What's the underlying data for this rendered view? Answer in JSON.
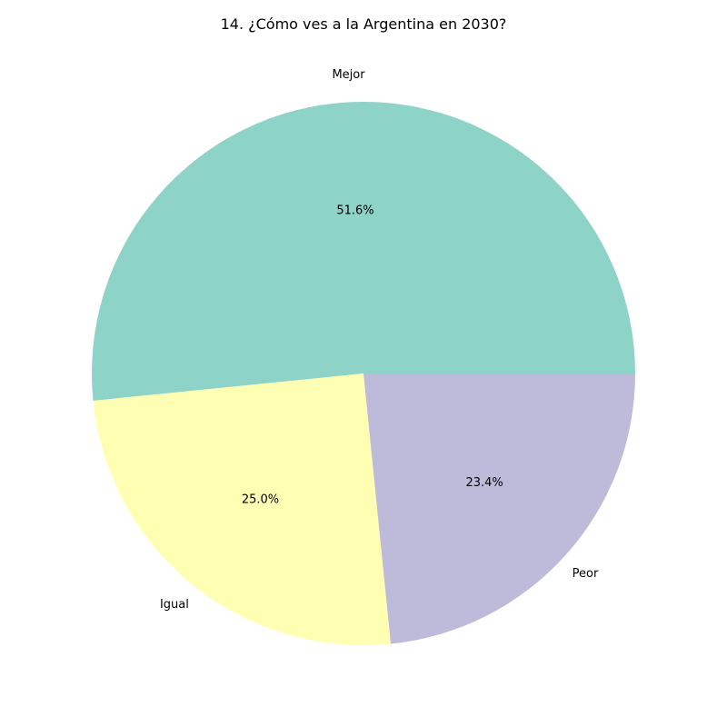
{
  "chart_data": {
    "type": "pie",
    "title": "14. ¿Cómo ves a la Argentina en 2030?",
    "slices": [
      {
        "label": "Mejor",
        "value": 51.6,
        "pct_label": "51.6%",
        "color": "#8dd3c7"
      },
      {
        "label": "Igual",
        "value": 25.0,
        "pct_label": "25.0%",
        "color": "#ffffb3"
      },
      {
        "label": "Peor",
        "value": 23.4,
        "pct_label": "23.4%",
        "color": "#bebada"
      }
    ],
    "start_angle": "east, counter-clockwise",
    "legend": "none"
  }
}
